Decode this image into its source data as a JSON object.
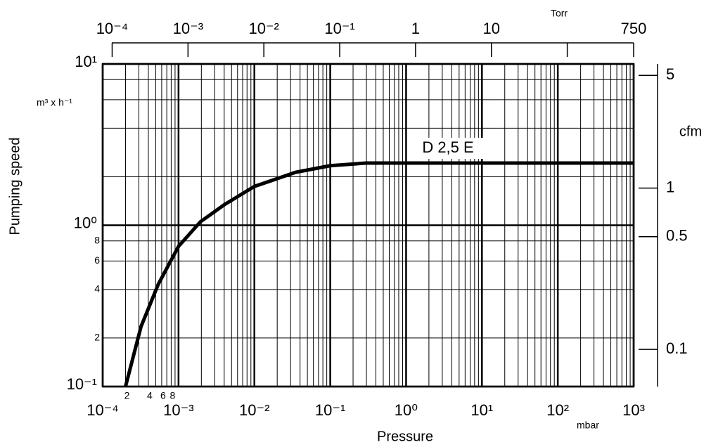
{
  "chart_data": {
    "type": "line",
    "xlabel": "Pressure",
    "ylabel": "Pumping speed",
    "x_unit": "mbar",
    "y_unit": "m³ x h⁻¹",
    "x2label": "Torr",
    "y2label": "cfm",
    "log_x": true,
    "log_y": true,
    "grid": true,
    "xlim": [
      0.0001,
      1000
    ],
    "ylim": [
      0.1,
      10
    ],
    "xticks": [
      {
        "value": 0.0001,
        "label": "10⁻⁴"
      },
      {
        "value": 0.0002,
        "label": "2"
      },
      {
        "value": 0.0004,
        "label": "4"
      },
      {
        "value": 0.0006,
        "label": "6"
      },
      {
        "value": 0.0008,
        "label": "8"
      },
      {
        "value": 0.001,
        "label": "10⁻³"
      },
      {
        "value": 0.01,
        "label": "10⁻²"
      },
      {
        "value": 0.1,
        "label": "10⁻¹"
      },
      {
        "value": 1,
        "label": "10⁰"
      },
      {
        "value": 10,
        "label": "10¹"
      },
      {
        "value": 100,
        "label": "10²"
      },
      {
        "value": 1000,
        "label": "10³"
      }
    ],
    "yticks": [
      {
        "value": 0.1,
        "label": "10⁻¹"
      },
      {
        "value": 0.2,
        "label": "2"
      },
      {
        "value": 0.4,
        "label": "4"
      },
      {
        "value": 0.6,
        "label": "6"
      },
      {
        "value": 0.8,
        "label": "8"
      },
      {
        "value": 1,
        "label": "10⁰"
      },
      {
        "value": 10,
        "label": "10¹"
      }
    ],
    "xgrid": [
      0.0003,
      0.0005,
      0.0007,
      0.0009,
      0.002,
      0.003,
      0.004,
      0.005,
      0.006,
      0.007,
      0.008,
      0.009,
      0.02,
      0.03,
      0.04,
      0.05,
      0.06,
      0.07,
      0.08,
      0.09,
      0.2,
      0.3,
      0.4,
      0.5,
      0.6,
      0.7,
      0.8,
      0.9,
      2,
      3,
      4,
      5,
      6,
      7,
      8,
      9,
      20,
      30,
      40,
      50,
      60,
      70,
      80,
      90,
      200,
      300,
      400,
      500,
      600,
      700,
      800,
      900
    ],
    "ygrid": [
      2,
      4,
      6,
      8
    ],
    "x2lim": [
      7.5e-05,
      750
    ],
    "x2ticks": [
      {
        "value": 0.0001,
        "label": "10⁻⁴"
      },
      {
        "value": 0.001,
        "label": "10⁻³"
      },
      {
        "value": 0.01,
        "label": "10⁻²"
      },
      {
        "value": 0.1,
        "label": "10⁻¹"
      },
      1,
      10,
      {
        "value": 100,
        "label": null
      },
      750
    ],
    "y2lim": [
      0.05886,
      5.886
    ],
    "y2ticks": [
      0.1,
      0.5,
      1,
      5
    ],
    "series": [
      {
        "name": "D 2,5 E",
        "color": "#000000",
        "x": [
          0.0002,
          0.00032,
          0.00054,
          0.001,
          0.00194,
          0.0041,
          0.01,
          0.035,
          0.1,
          0.295,
          1000
        ],
        "values": [
          0.1,
          0.235,
          0.43,
          0.74,
          1.05,
          1.35,
          1.74,
          2.13,
          2.34,
          2.43,
          2.43
        ]
      }
    ]
  }
}
